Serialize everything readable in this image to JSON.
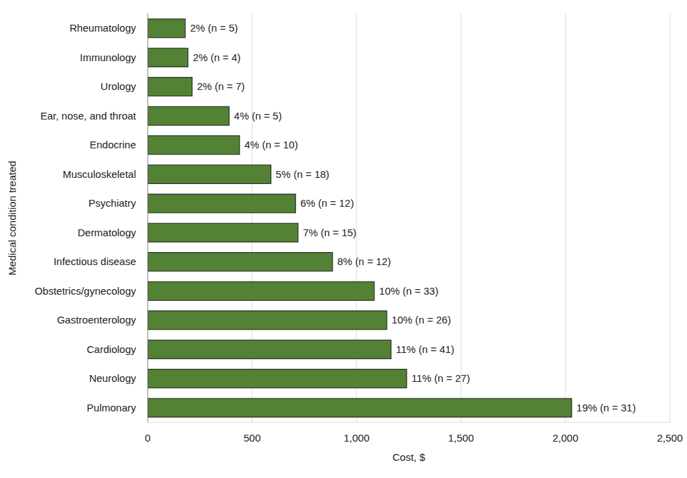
{
  "chart_data": {
    "type": "bar",
    "orientation": "horizontal",
    "x_label": "Cost, $",
    "y_label": "Medical condition treated",
    "categories": [
      "Rheumatology",
      "Immunology",
      "Urology",
      "Ear, nose, and throat",
      "Endocrine",
      "Musculoskeletal",
      "Psychiatry",
      "Dermatology",
      "Infectious disease",
      "Obstetrics/gynecology",
      "Gastroenterology",
      "Cardiology",
      "Neurology",
      "Pulmonary"
    ],
    "values": [
      180,
      193,
      213,
      390,
      440,
      590,
      708,
      720,
      885,
      1085,
      1145,
      1165,
      1240,
      2030
    ],
    "annotations": [
      "2% (n = 5)",
      "2% (n = 4)",
      "2% (n = 7)",
      "4% (n = 5)",
      "4% (n = 10)",
      "5% (n = 18)",
      "6% (n = 12)",
      "7% (n = 15)",
      "8% (n = 12)",
      "10% (n = 33)",
      "10% (n = 26)",
      "11% (n = 41)",
      "11% (n = 27)",
      "19% (n = 31)"
    ],
    "color": "#548235",
    "xlim": [
      0,
      2500
    ],
    "xticks": [
      0,
      500,
      {
        "value": 1000,
        "label": "1,000"
      },
      {
        "value": 1500,
        "label": "1,500"
      },
      {
        "value": 2000,
        "label": "2,000"
      },
      {
        "value": 2500,
        "label": "2,500"
      }
    ],
    "grid": true,
    "data_labels": false
  }
}
